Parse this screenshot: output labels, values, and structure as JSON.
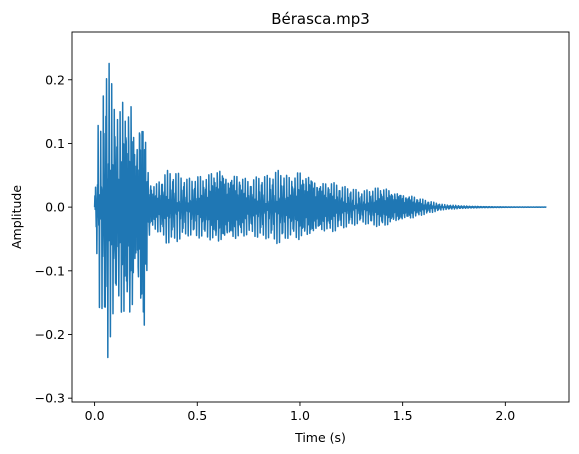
{
  "chart_data": {
    "type": "line",
    "title": "Bérasca.mp3",
    "xlabel": "Time (s)",
    "ylabel": "Amplitude",
    "xlim": [
      -0.11,
      2.31
    ],
    "ylim": [
      -0.306,
      0.275
    ],
    "xticks": [
      0.0,
      0.5,
      1.0,
      1.5,
      2.0
    ],
    "xtick_labels": [
      "0.0",
      "0.5",
      "1.0",
      "1.5",
      "2.0"
    ],
    "yticks": [
      -0.3,
      -0.2,
      -0.1,
      0.0,
      0.1,
      0.2
    ],
    "ytick_labels": [
      "−0.3",
      "−0.2",
      "−0.1",
      "0.0",
      "0.1",
      "0.2"
    ],
    "grid": false,
    "legend": "none",
    "series": [
      {
        "color": "#1f77b4",
        "duration_s": 2.2,
        "envelope_time_s": [
          0.0,
          0.01,
          0.02,
          0.03,
          0.04,
          0.05,
          0.06,
          0.07,
          0.08,
          0.1,
          0.12,
          0.14,
          0.16,
          0.18,
          0.2,
          0.22,
          0.24,
          0.26,
          0.28,
          0.3,
          0.35,
          0.4,
          0.45,
          0.5,
          0.55,
          0.6,
          0.65,
          0.7,
          0.75,
          0.8,
          0.85,
          0.9,
          0.95,
          1.0,
          1.05,
          1.1,
          1.15,
          1.2,
          1.25,
          1.3,
          1.35,
          1.4,
          1.45,
          1.5,
          1.55,
          1.6,
          1.65,
          1.7,
          1.75,
          1.8,
          1.9,
          2.0,
          2.1,
          2.2
        ],
        "envelope_max": [
          0.02,
          0.06,
          0.16,
          0.12,
          0.2,
          0.21,
          0.255,
          0.24,
          0.21,
          0.19,
          0.16,
          0.2,
          0.19,
          0.2,
          0.1,
          0.19,
          0.17,
          0.07,
          0.04,
          0.04,
          0.06,
          0.055,
          0.045,
          0.05,
          0.055,
          0.075,
          0.06,
          0.06,
          0.045,
          0.05,
          0.05,
          0.06,
          0.05,
          0.065,
          0.06,
          0.045,
          0.045,
          0.035,
          0.03,
          0.025,
          0.03,
          0.035,
          0.03,
          0.025,
          0.02,
          0.013,
          0.008,
          0.004,
          0.003,
          0.002,
          0.001,
          0.0005,
          0.0003,
          0.0002
        ],
        "envelope_min": [
          -0.02,
          -0.07,
          -0.18,
          -0.12,
          -0.2,
          -0.21,
          -0.28,
          -0.24,
          -0.2,
          -0.18,
          -0.16,
          -0.21,
          -0.2,
          -0.22,
          -0.1,
          -0.2,
          -0.267,
          -0.07,
          -0.04,
          -0.04,
          -0.06,
          -0.055,
          -0.045,
          -0.05,
          -0.055,
          -0.07,
          -0.06,
          -0.06,
          -0.045,
          -0.05,
          -0.05,
          -0.06,
          -0.05,
          -0.06,
          -0.055,
          -0.045,
          -0.045,
          -0.035,
          -0.03,
          -0.025,
          -0.03,
          -0.035,
          -0.03,
          -0.025,
          -0.02,
          -0.013,
          -0.008,
          -0.004,
          -0.003,
          -0.002,
          -0.001,
          -0.0005,
          -0.0003,
          -0.0002
        ]
      }
    ]
  }
}
